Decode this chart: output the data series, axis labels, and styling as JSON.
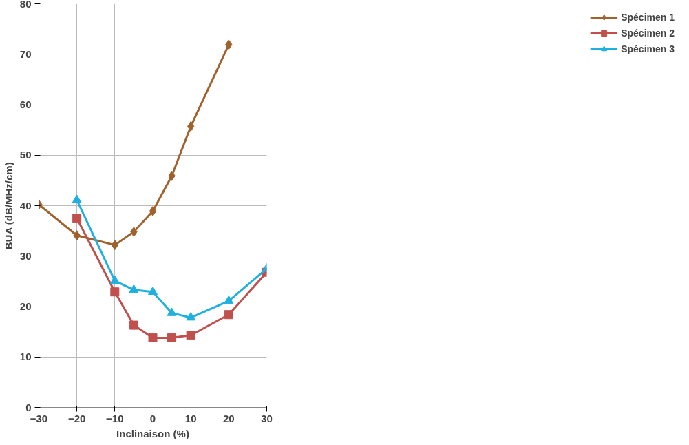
{
  "chart_data": {
    "type": "line",
    "xlabel": "Inclinaison (%)",
    "ylabel": "BUA (dB/MHz/cm)",
    "xlim": [
      -30,
      30
    ],
    "xticks": [
      -30,
      -20,
      -10,
      0,
      10,
      20,
      30
    ],
    "ylim": [
      0,
      80
    ],
    "yticks": [
      0,
      10,
      20,
      30,
      40,
      50,
      60,
      70,
      80
    ],
    "grid": true,
    "legend": "right",
    "line_style": "solid",
    "series": [
      {
        "name": "Spécimen 1",
        "color": "#a0622d",
        "marker": "diamond",
        "x": [
          -30,
          -20,
          -10,
          -5,
          0,
          5,
          10,
          20
        ],
        "values": [
          40.2,
          34.1,
          32.2,
          34.8,
          38.9,
          45.9,
          55.7,
          71.9
        ]
      },
      {
        "name": "Spécimen 2",
        "color": "#c0504d",
        "marker": "square",
        "x": [
          -20,
          -10,
          -5,
          0,
          5,
          10,
          20,
          30
        ],
        "values": [
          37.5,
          22.9,
          16.3,
          13.8,
          13.8,
          14.3,
          18.4,
          26.8
        ]
      },
      {
        "name": "Spécimen 3",
        "color": "#1fb0e0",
        "marker": "triangle",
        "x": [
          -20,
          -10,
          -5,
          0,
          5,
          10,
          20,
          30
        ],
        "values": [
          41.1,
          25.1,
          23.3,
          22.9,
          18.7,
          17.8,
          21.1,
          27.5
        ]
      }
    ]
  }
}
